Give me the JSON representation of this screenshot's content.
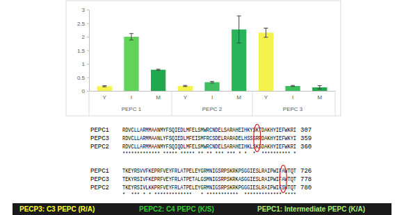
{
  "chart_data": {
    "type": "bar",
    "categories": [
      "Y",
      "I",
      "M",
      "Y",
      "I",
      "M",
      "Y",
      "I",
      "M"
    ],
    "groups": [
      "PEPC 1",
      "PEPC 2",
      "PEPC 3"
    ],
    "values": [
      0.17,
      2.0,
      0.78,
      0.18,
      0.32,
      2.27,
      2.15,
      0.18,
      0.13
    ],
    "errors": [
      0.02,
      0.12,
      0.02,
      0.02,
      0.03,
      0.5,
      0.17,
      0.02,
      0.06
    ],
    "colors": [
      "#f5f24d",
      "#5fd35a",
      "#21a84f",
      "#f5f24d",
      "#3fbf62",
      "#27b45a",
      "#f5f24d",
      "#3cbf5f",
      "#22a94e"
    ],
    "ylim": [
      0,
      3
    ],
    "yticks": [
      0,
      0.5,
      1,
      1.5,
      2,
      2.5,
      3
    ],
    "grid": false
  },
  "alignment": {
    "blocks": [
      {
        "rows": [
          {
            "name": "PEPC1",
            "sequence": "RDVCLLARMMAANMYFSQIEDLMFELSMWRCNDELSARAHEIHKYSKTDAKHYIEFWKRI",
            "end": "307"
          },
          {
            "name": "PEPC3",
            "sequence": "RDVCLLARMMAANLYFSQIEDLMFEISMFRCSDELRARADELHSSSRRDAKHYIEFWKYI",
            "end": "359"
          },
          {
            "name": "PEPC2",
            "sequence": "RDVCLLARMMAANMYFSQIQDLMFELSMWRCNDELSARAHEIHKLSKSDAKHYIEFWKRI",
            "end": "360"
          }
        ],
        "conservation": "************* ***** ***** ** ** *** *** * *  *  ********** *"
      },
      {
        "rows": [
          {
            "name": "PEPC1",
            "sequence": "TKEYRSVVFKEPRFVEYFRLATPELEYGRMNIGSRPSKRKPSGGIESLRAIPWIFAWTQT",
            "end": "726"
          },
          {
            "name": "PEPC3",
            "sequence": "TEKYRSIVFKEPRFVEYFRLATPETALGSMNIGSRPSKRKASGGIESLRAIPWIFAWTQT",
            "end": "778"
          },
          {
            "name": "PEPC2",
            "sequence": "TKEYRSIVLKKPRFVEYFRLATPELEYGRMNIGSRPSKRKPGGGIESLRAIPWIFSWTQT",
            "end": "780"
          }
        ],
        "conservation": "*  *** * * *************   * ***********  ************* ****"
      }
    ]
  },
  "banner": [
    {
      "text": "PECP3: C3 PEPC (R/A)",
      "color": "#ffff33"
    },
    {
      "text": "PEPC2: C4 PEPC (K/S)",
      "color": "#33cc33"
    },
    {
      "text": "PEPC1: Intermediate PEPC (K/A)",
      "color": "#a6ee77"
    }
  ]
}
